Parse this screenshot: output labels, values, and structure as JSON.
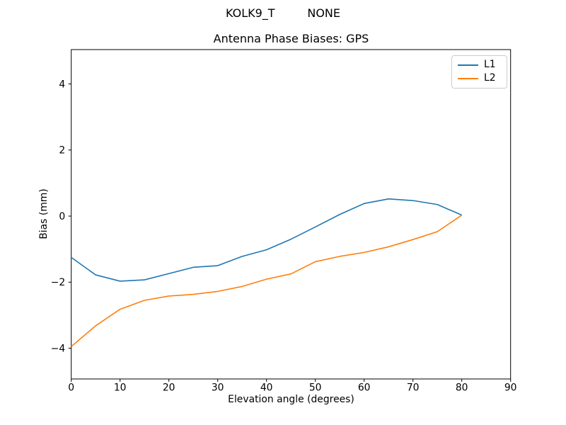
{
  "chart_data": {
    "type": "line",
    "suptitle": "KOLK9_T         NONE",
    "title": "Antenna Phase Biases: GPS",
    "xlabel": "Elevation angle (degrees)",
    "ylabel": "Bias (mm)",
    "x": [
      0,
      5,
      10,
      15,
      20,
      25,
      30,
      35,
      40,
      45,
      50,
      55,
      60,
      65,
      70,
      75,
      80
    ],
    "series": [
      {
        "name": "L1",
        "color": "#1f77b4",
        "values": [
          -1.25,
          -1.78,
          -1.97,
          -1.93,
          -1.74,
          -1.55,
          -1.5,
          -1.22,
          -1.02,
          -0.7,
          -0.33,
          0.05,
          0.38,
          0.52,
          0.47,
          0.35,
          0.03
        ]
      },
      {
        "name": "L2",
        "color": "#ff7f0e",
        "values": [
          -3.95,
          -3.32,
          -2.82,
          -2.55,
          -2.42,
          -2.37,
          -2.28,
          -2.13,
          -1.91,
          -1.75,
          -1.38,
          -1.22,
          -1.1,
          -0.93,
          -0.71,
          -0.47,
          0.03
        ]
      }
    ],
    "xlim": [
      0,
      90
    ],
    "ylim": [
      -4.93,
      5.04
    ],
    "xticks": [
      0,
      10,
      20,
      30,
      40,
      50,
      60,
      70,
      80,
      90
    ],
    "yticks": [
      -4,
      -2,
      0,
      2,
      4
    ],
    "grid": false,
    "legend_position": "upper right",
    "axis_color": "#000000",
    "background": "#ffffff"
  }
}
